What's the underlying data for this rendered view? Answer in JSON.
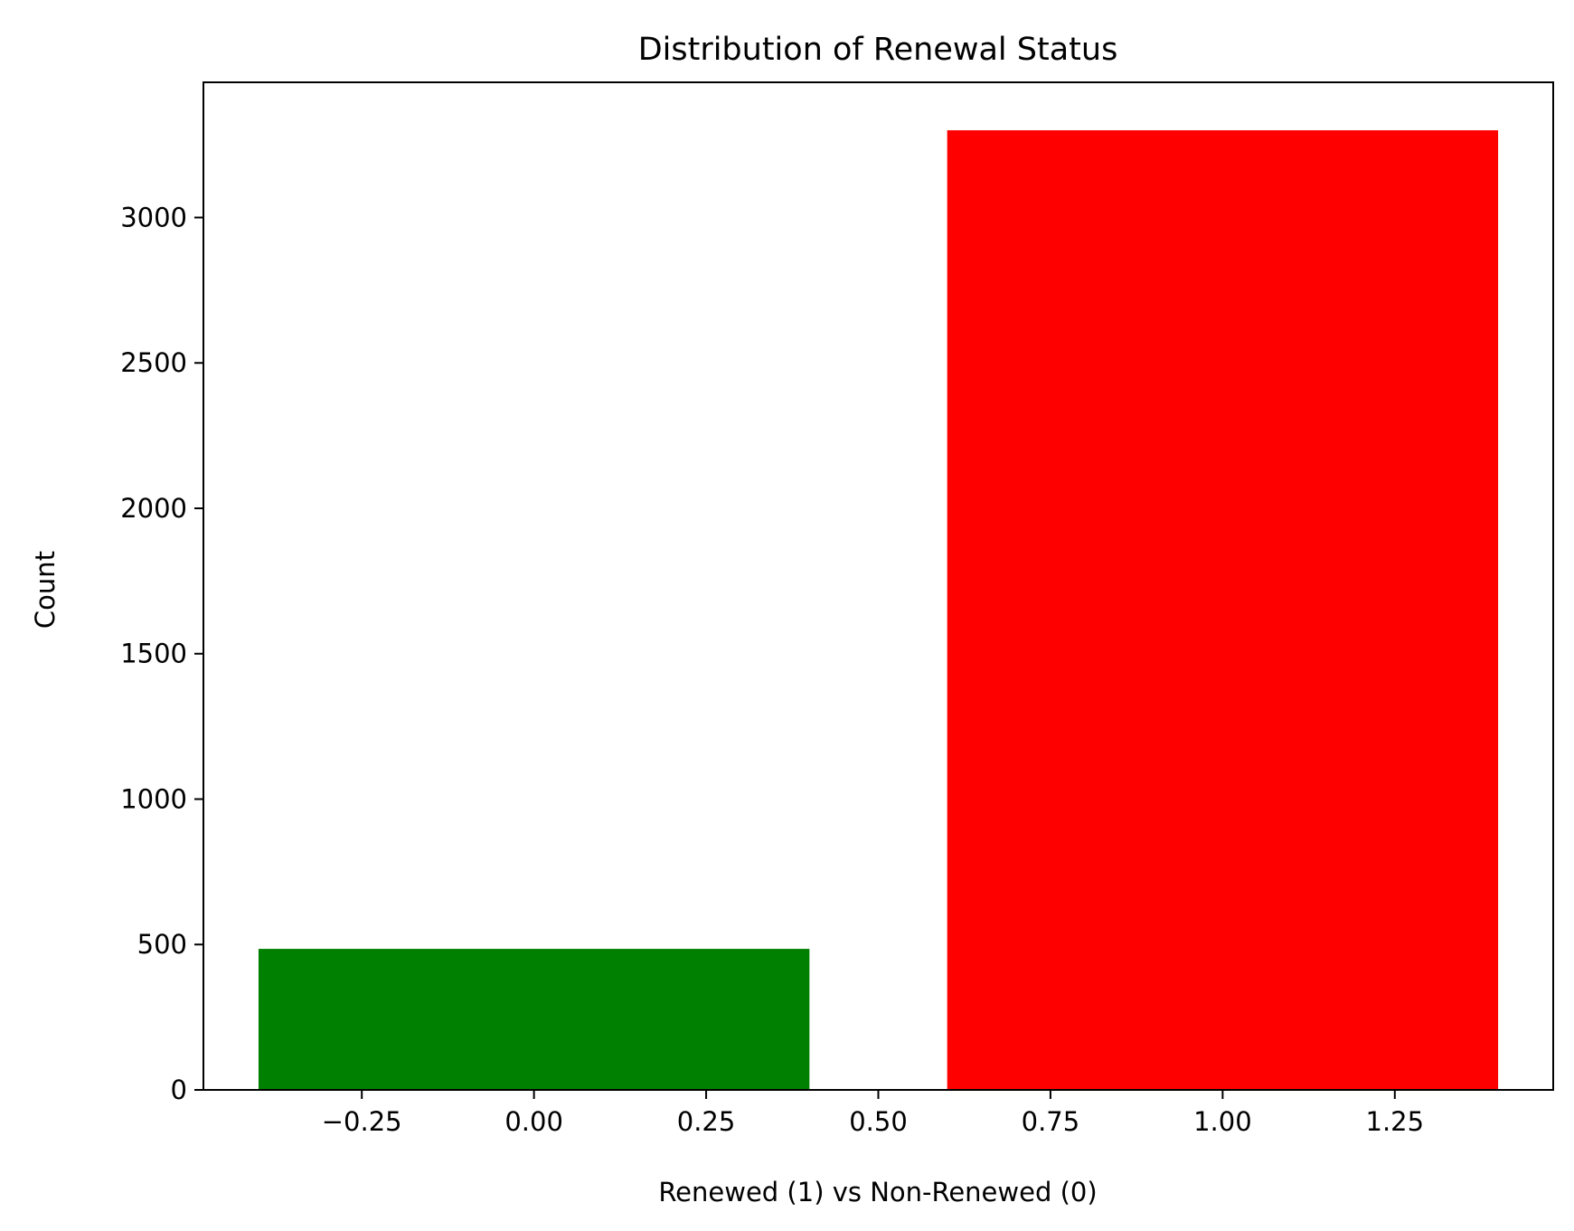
{
  "chart_data": {
    "type": "bar",
    "title": "Distribution of Renewal Status",
    "xlabel": "Renewed (1) vs Non-Renewed (0)",
    "ylabel": "Count",
    "bars": [
      {
        "x": 0,
        "value": 485,
        "color": "#008000"
      },
      {
        "x": 1,
        "value": 3300,
        "color": "#ff0000"
      }
    ],
    "bar_width": 0.8,
    "xlim": [
      -0.48,
      1.48
    ],
    "ylim": [
      0,
      3465
    ],
    "xticks": [
      -0.25,
      0.0,
      0.25,
      0.5,
      0.75,
      1.0,
      1.25
    ],
    "xtick_labels": [
      "−0.25",
      "0.00",
      "0.25",
      "0.50",
      "0.75",
      "1.00",
      "1.25"
    ],
    "yticks": [
      0,
      500,
      1000,
      1500,
      2000,
      2500,
      3000
    ],
    "ytick_labels": [
      "0",
      "500",
      "1000",
      "1500",
      "2000",
      "2500",
      "3000"
    ],
    "grid": false,
    "legend": "none"
  }
}
